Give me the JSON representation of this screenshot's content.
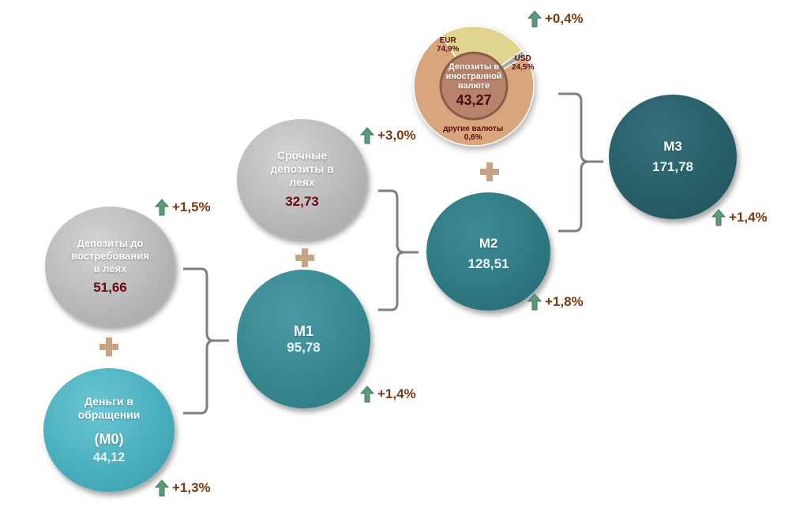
{
  "nodes": {
    "m0": {
      "label_line1": "Деньги в",
      "label_line2": "обращении",
      "label_code": "(M0)",
      "value": "44,12",
      "change": "+1,3%"
    },
    "demand": {
      "label_line1": "Депозиты до",
      "label_line2": "востребования",
      "label_line3": "в леях",
      "value": "51,66",
      "change": "+1,5%"
    },
    "m1": {
      "label": "M1",
      "value": "95,78",
      "change": "+1,4%"
    },
    "term": {
      "label_line1": "Срочные",
      "label_line2": "депозиты в",
      "label_line3": "леях",
      "value": "32,73",
      "change": "+3,0%"
    },
    "m2": {
      "label": "M2",
      "value": "128,51",
      "change": "+1,8%"
    },
    "foreign": {
      "label_line1": "Депозиты в",
      "label_line2": "иностранной",
      "label_line3": "валюте",
      "value": "43,27",
      "change": "+0,4%"
    },
    "m3": {
      "label": "M3",
      "value": "171,78",
      "change": "+1,4%"
    }
  },
  "foreign_breakdown": [
    {
      "name": "EUR",
      "share": "74,9%",
      "percent": 74.9,
      "color": "#d8a57c"
    },
    {
      "name": "USD",
      "share": "24,5%",
      "percent": 24.5,
      "color": "#dfd58e"
    },
    {
      "name": "другие валюты",
      "share": "0,6%",
      "percent": 0.6,
      "color": "#a8a8a8"
    }
  ],
  "colors": {
    "arrow_up": "#5b9a7a",
    "change_text": "#7a3a12",
    "plus": "#c8a487",
    "bracket": "#7f7f7f",
    "value_dark": "#6a0a14"
  },
  "icons": {
    "change_indicator": "arrow-up-icon",
    "sum": "plus-icon",
    "group": "bracket-icon"
  }
}
